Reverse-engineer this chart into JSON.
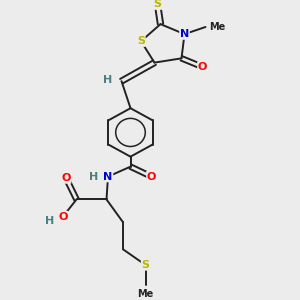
{
  "bg_color": "#ececec",
  "atom_colors": {
    "S": "#b8b800",
    "O": "#ff0000",
    "N": "#0000cc",
    "H": "#4a8080",
    "C": "#222222"
  },
  "bond_color": "#222222",
  "fig_w": 3.0,
  "fig_h": 3.0,
  "dpi": 100,
  "xlim": [
    0,
    10
  ],
  "ylim": [
    0,
    10
  ]
}
